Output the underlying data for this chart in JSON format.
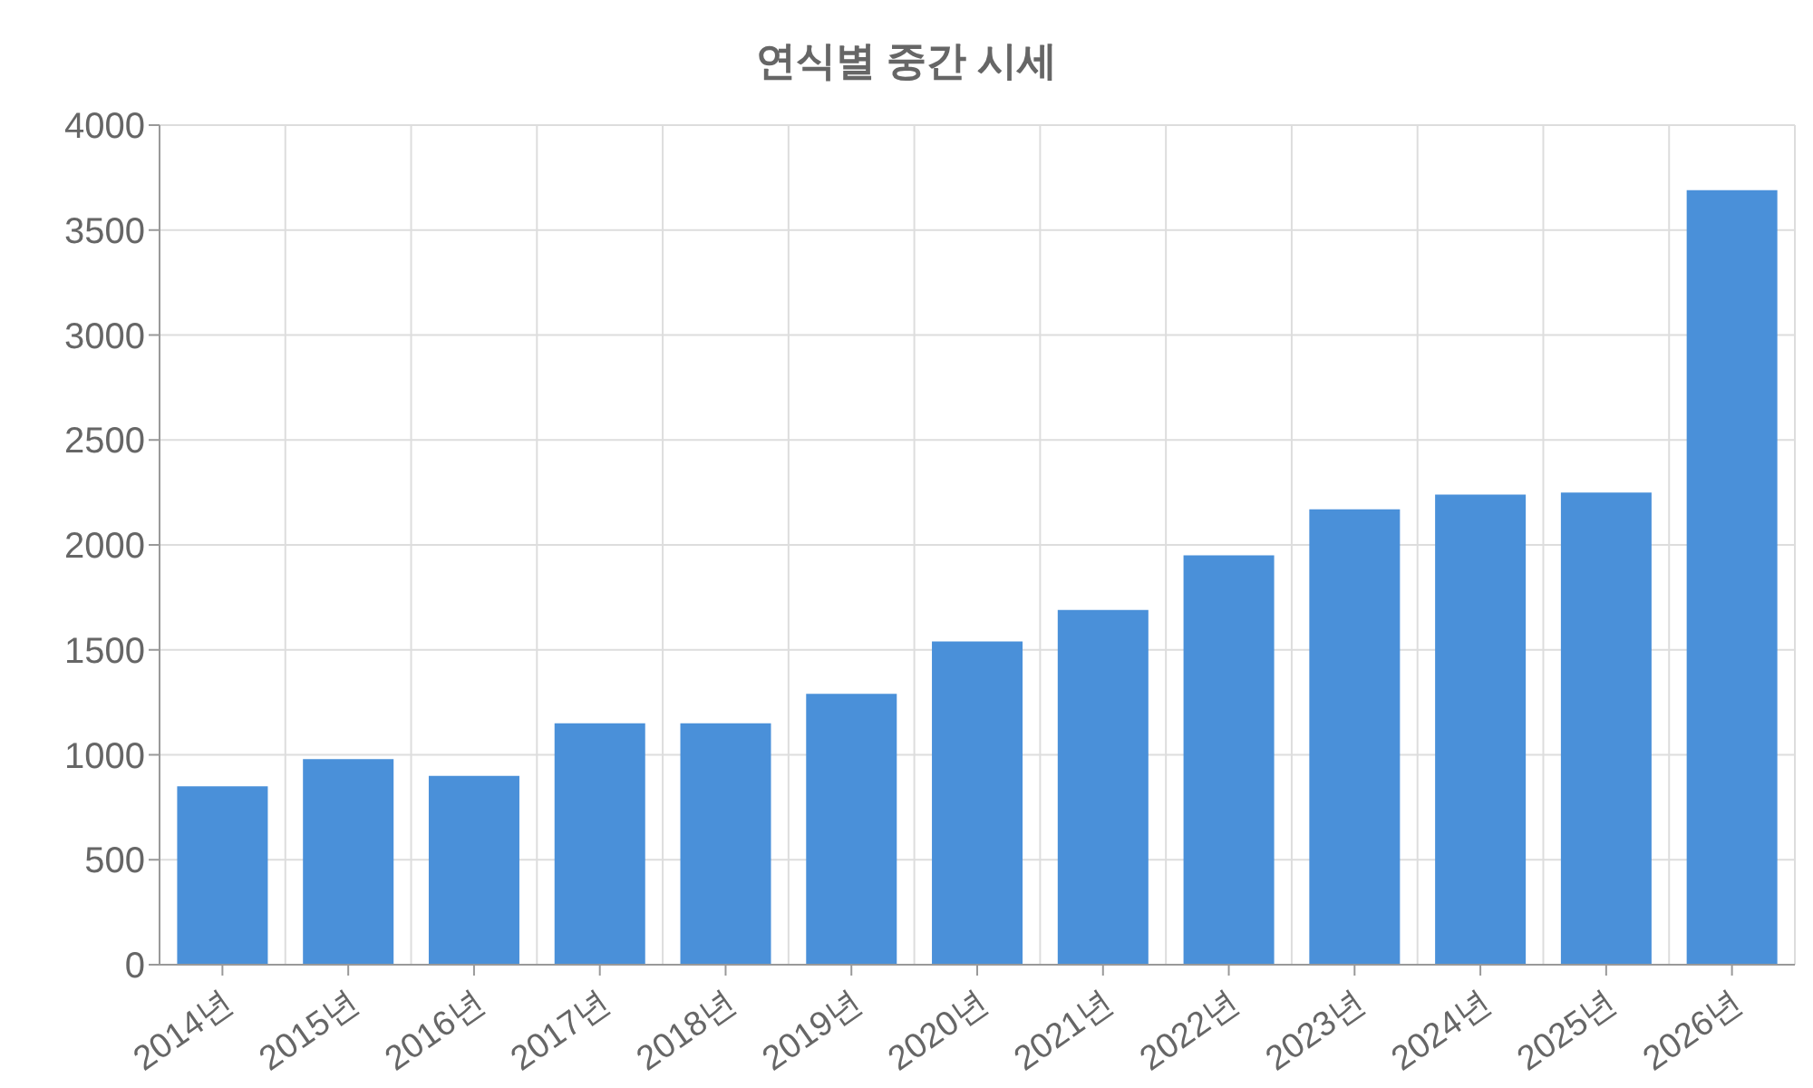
{
  "chart_data": {
    "type": "bar",
    "title": "연식별 중간 시세",
    "categories": [
      "2014년",
      "2015년",
      "2016년",
      "2017년",
      "2018년",
      "2019년",
      "2020년",
      "2021년",
      "2022년",
      "2023년",
      "2024년",
      "2025년",
      "2026년"
    ],
    "values": [
      850,
      980,
      900,
      1150,
      1150,
      1290,
      1540,
      1690,
      1950,
      2170,
      2240,
      2250,
      3690
    ],
    "color": "#4a90d9",
    "ylim": [
      0,
      4000
    ],
    "yticks": [
      0,
      500,
      1000,
      1500,
      2000,
      2500,
      3000,
      3500,
      4000
    ],
    "grid": true
  }
}
